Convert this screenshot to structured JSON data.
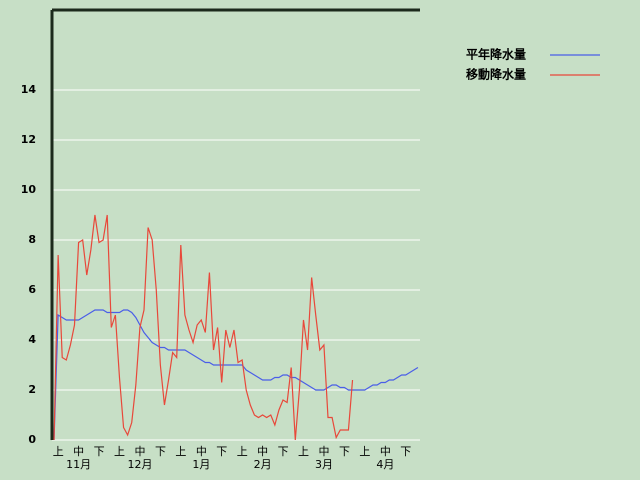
{
  "chart_data": {
    "type": "line",
    "categories": [
      null,
      null,
      "上",
      null,
      null,
      null,
      null,
      "中",
      null,
      null,
      null,
      null,
      "下",
      null,
      null,
      null,
      null,
      "上",
      null,
      null,
      null,
      null,
      "中",
      null,
      null,
      null,
      null,
      "下",
      null,
      null,
      null,
      null,
      "上",
      null,
      null,
      null,
      null,
      "中",
      null,
      null,
      null,
      null,
      "下",
      null,
      null,
      null,
      null,
      "上",
      null,
      null,
      null,
      null,
      "中",
      null,
      null,
      null,
      null,
      "下",
      null,
      null,
      null,
      null,
      "上",
      null,
      null,
      null,
      null,
      "中",
      null,
      null,
      null,
      null,
      "下",
      null,
      null,
      null,
      null,
      "上",
      null,
      null,
      null,
      null,
      "中",
      null,
      null,
      null,
      null,
      "下",
      null,
      null
    ],
    "months": [
      "11月",
      "12月",
      "1月",
      "2月",
      "3月",
      "4月"
    ],
    "series": [
      {
        "name": "平年降水量",
        "color": "#4a5ee8",
        "values": [
          0,
          5.0,
          4.9,
          4.8,
          4.8,
          4.8,
          4.8,
          4.9,
          5.0,
          5.1,
          5.2,
          5.2,
          5.2,
          5.1,
          5.1,
          5.1,
          5.1,
          5.2,
          5.2,
          5.1,
          4.9,
          4.6,
          4.3,
          4.1,
          3.9,
          3.8,
          3.7,
          3.7,
          3.6,
          3.6,
          3.6,
          3.6,
          3.6,
          3.5,
          3.4,
          3.3,
          3.2,
          3.1,
          3.1,
          3.0,
          3.0,
          3.0,
          3.0,
          3.0,
          3.0,
          3.0,
          3.0,
          2.8,
          2.7,
          2.6,
          2.5,
          2.4,
          2.4,
          2.4,
          2.5,
          2.5,
          2.6,
          2.6,
          2.5,
          2.5,
          2.4,
          2.3,
          2.2,
          2.1,
          2.0,
          2.0,
          2.0,
          2.1,
          2.2,
          2.2,
          2.1,
          2.1,
          2.0,
          2.0,
          2.0,
          2.0,
          2.0,
          2.1,
          2.2,
          2.2,
          2.3,
          2.3,
          2.4,
          2.4,
          2.5,
          2.6,
          2.6,
          2.7,
          2.8,
          2.9
        ]
      },
      {
        "name": "移動降水量",
        "color": "#e8483a",
        "values": [
          0,
          7.4,
          3.3,
          3.2,
          3.8,
          4.6,
          7.9,
          8.0,
          6.6,
          7.6,
          9.0,
          7.9,
          8.0,
          9.0,
          4.5,
          5.0,
          2.5,
          0.5,
          0.2,
          0.7,
          2.2,
          4.5,
          5.2,
          8.5,
          8.0,
          6.0,
          3.0,
          1.4,
          2.4,
          3.5,
          3.3,
          7.8,
          5.0,
          4.4,
          3.9,
          4.6,
          4.8,
          4.3,
          6.7,
          3.6,
          4.5,
          2.3,
          4.4,
          3.7,
          4.4,
          3.1,
          3.2,
          2.0,
          1.4,
          1.0,
          0.9,
          1.0,
          0.9,
          1.0,
          0.6,
          1.2,
          1.6,
          1.5,
          2.9,
          0,
          2.0,
          4.8,
          3.6,
          6.5,
          5.0,
          3.6,
          3.8,
          0.9,
          0.9,
          0.1,
          0.4,
          0.4,
          0.4,
          2.4,
          null,
          null,
          null,
          null,
          null,
          null,
          null,
          null,
          null,
          null,
          null,
          null,
          null,
          null,
          null,
          null
        ]
      }
    ],
    "ylim": [
      0,
      17.2
    ],
    "yticks": [
      0,
      2,
      4,
      6,
      8,
      10,
      12,
      14
    ],
    "grid": true
  }
}
